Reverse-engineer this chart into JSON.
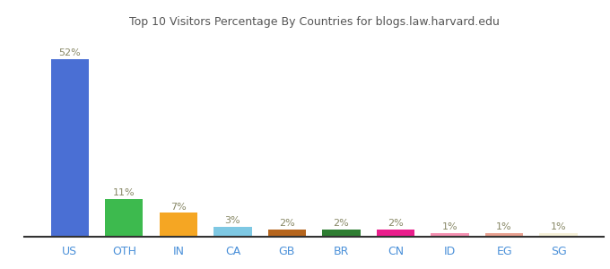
{
  "categories": [
    "US",
    "OTH",
    "IN",
    "CA",
    "GB",
    "BR",
    "CN",
    "ID",
    "EG",
    "SG"
  ],
  "values": [
    52,
    11,
    7,
    3,
    2,
    2,
    2,
    1,
    1,
    1
  ],
  "labels": [
    "52%",
    "11%",
    "7%",
    "3%",
    "2%",
    "2%",
    "2%",
    "1%",
    "1%",
    "1%"
  ],
  "bar_colors": [
    "#4a6fd4",
    "#3dba4e",
    "#f5a623",
    "#7ec8e3",
    "#b5651d",
    "#2e7d32",
    "#e91e8c",
    "#f48fb1",
    "#e8a090",
    "#f5f0d8"
  ],
  "title": "Top 10 Visitors Percentage By Countries for blogs.law.harvard.edu",
  "title_fontsize": 9,
  "label_color": "#888866",
  "xtick_color": "#4a90d9",
  "background_color": "#ffffff",
  "ylim": [
    0,
    60
  ],
  "bar_width": 0.7
}
